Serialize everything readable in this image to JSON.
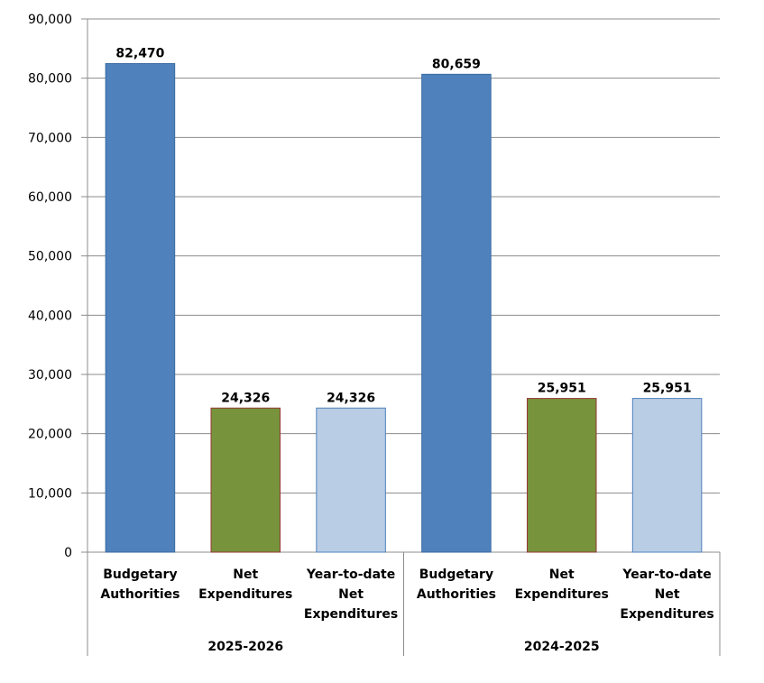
{
  "chart_data": {
    "type": "bar",
    "title": "",
    "xlabel": "",
    "ylabel": "",
    "ylim": [
      0,
      90000
    ],
    "yticks": [
      0,
      10000,
      20000,
      30000,
      40000,
      50000,
      60000,
      70000,
      80000,
      90000
    ],
    "ytick_labels": [
      "0",
      "10,000",
      "20,000",
      "30,000",
      "40,000",
      "50,000",
      "60,000",
      "70,000",
      "80,000",
      "90,000"
    ],
    "grid": true,
    "groups": [
      {
        "label": "2025-2026",
        "bars": [
          {
            "category": [
              "Budgetary",
              "Authorities"
            ],
            "value": 82470,
            "label": "82,470",
            "color": "#4f81bd",
            "border": "#3a6aa0"
          },
          {
            "category": [
              "Net",
              "Expenditures"
            ],
            "value": 24326,
            "label": "24,326",
            "color": "#77933c",
            "border": "#953735"
          },
          {
            "category": [
              "Year-to-date",
              "Net",
              "Expenditures"
            ],
            "value": 24326,
            "label": "24,326",
            "color": "#b9cde5",
            "border": "#4f81bd"
          }
        ]
      },
      {
        "label": "2024-2025",
        "bars": [
          {
            "category": [
              "Budgetary",
              "Authorities"
            ],
            "value": 80659,
            "label": "80,659",
            "color": "#4f81bd",
            "border": "#3a6aa0"
          },
          {
            "category": [
              "Net",
              "Expenditures"
            ],
            "value": 25951,
            "label": "25,951",
            "color": "#77933c",
            "border": "#953735"
          },
          {
            "category": [
              "Year-to-date",
              "Net",
              "Expenditures"
            ],
            "value": 25951,
            "label": "25,951",
            "color": "#b9cde5",
            "border": "#4f81bd"
          }
        ]
      }
    ]
  }
}
